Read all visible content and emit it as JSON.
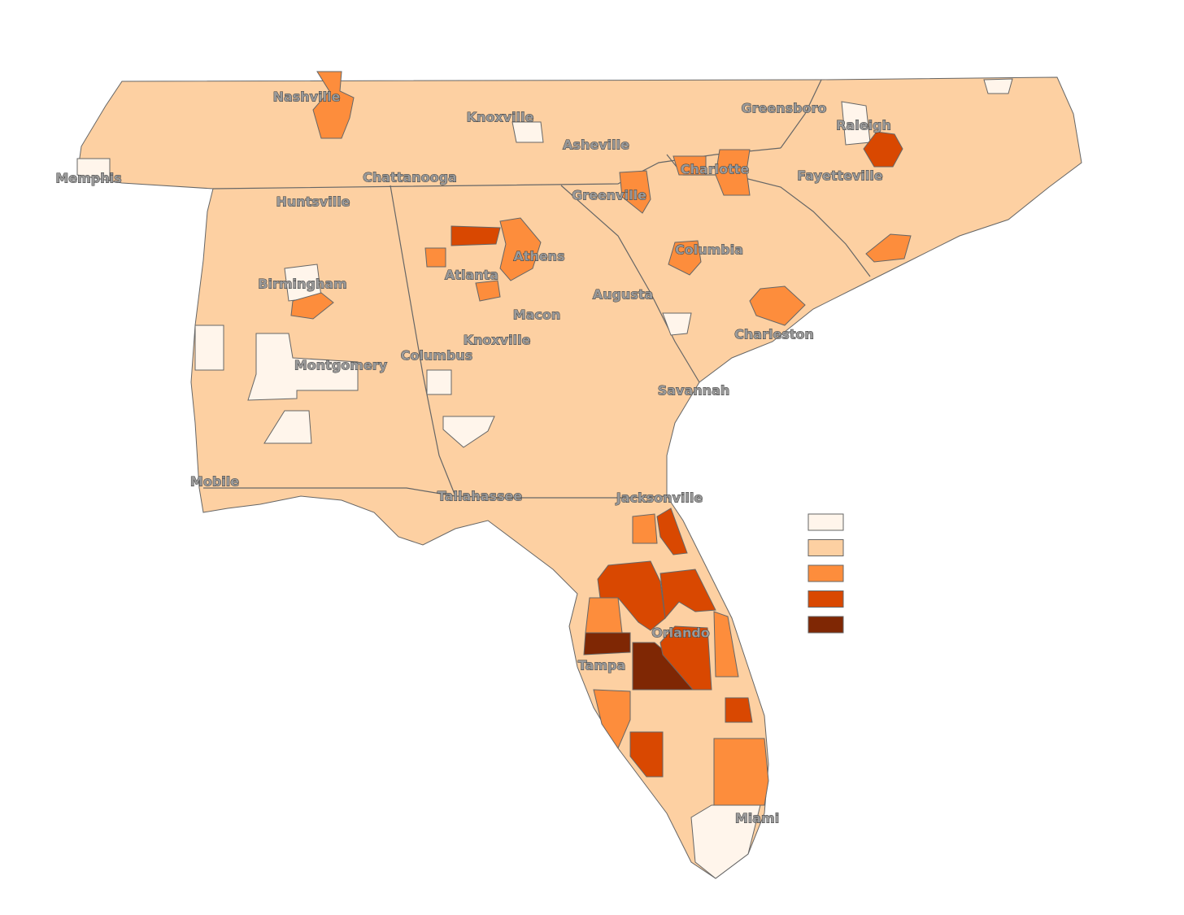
{
  "map": {
    "cities": [
      "Nashville",
      "Knoxville",
      "Greensboro",
      "Raleigh",
      "Asheville",
      "Memphis",
      "Chattanooga",
      "Charlotte",
      "Fayetteville",
      "Greenville",
      "Huntsville",
      "Athens",
      "Columbia",
      "Atlanta",
      "Birmingham",
      "Augusta",
      "Macon",
      "Charleston",
      "Knoxville",
      "Columbus",
      "Montgomery",
      "Savannah",
      "Mobile",
      "Tallahassee",
      "Jacksonville",
      "Orlando",
      "Tampa",
      "Miami"
    ],
    "legend": {
      "colors": [
        "#fff5eb",
        "#fdd0a2",
        "#fd8d3c",
        "#d94801",
        "#7f2704"
      ]
    }
  }
}
